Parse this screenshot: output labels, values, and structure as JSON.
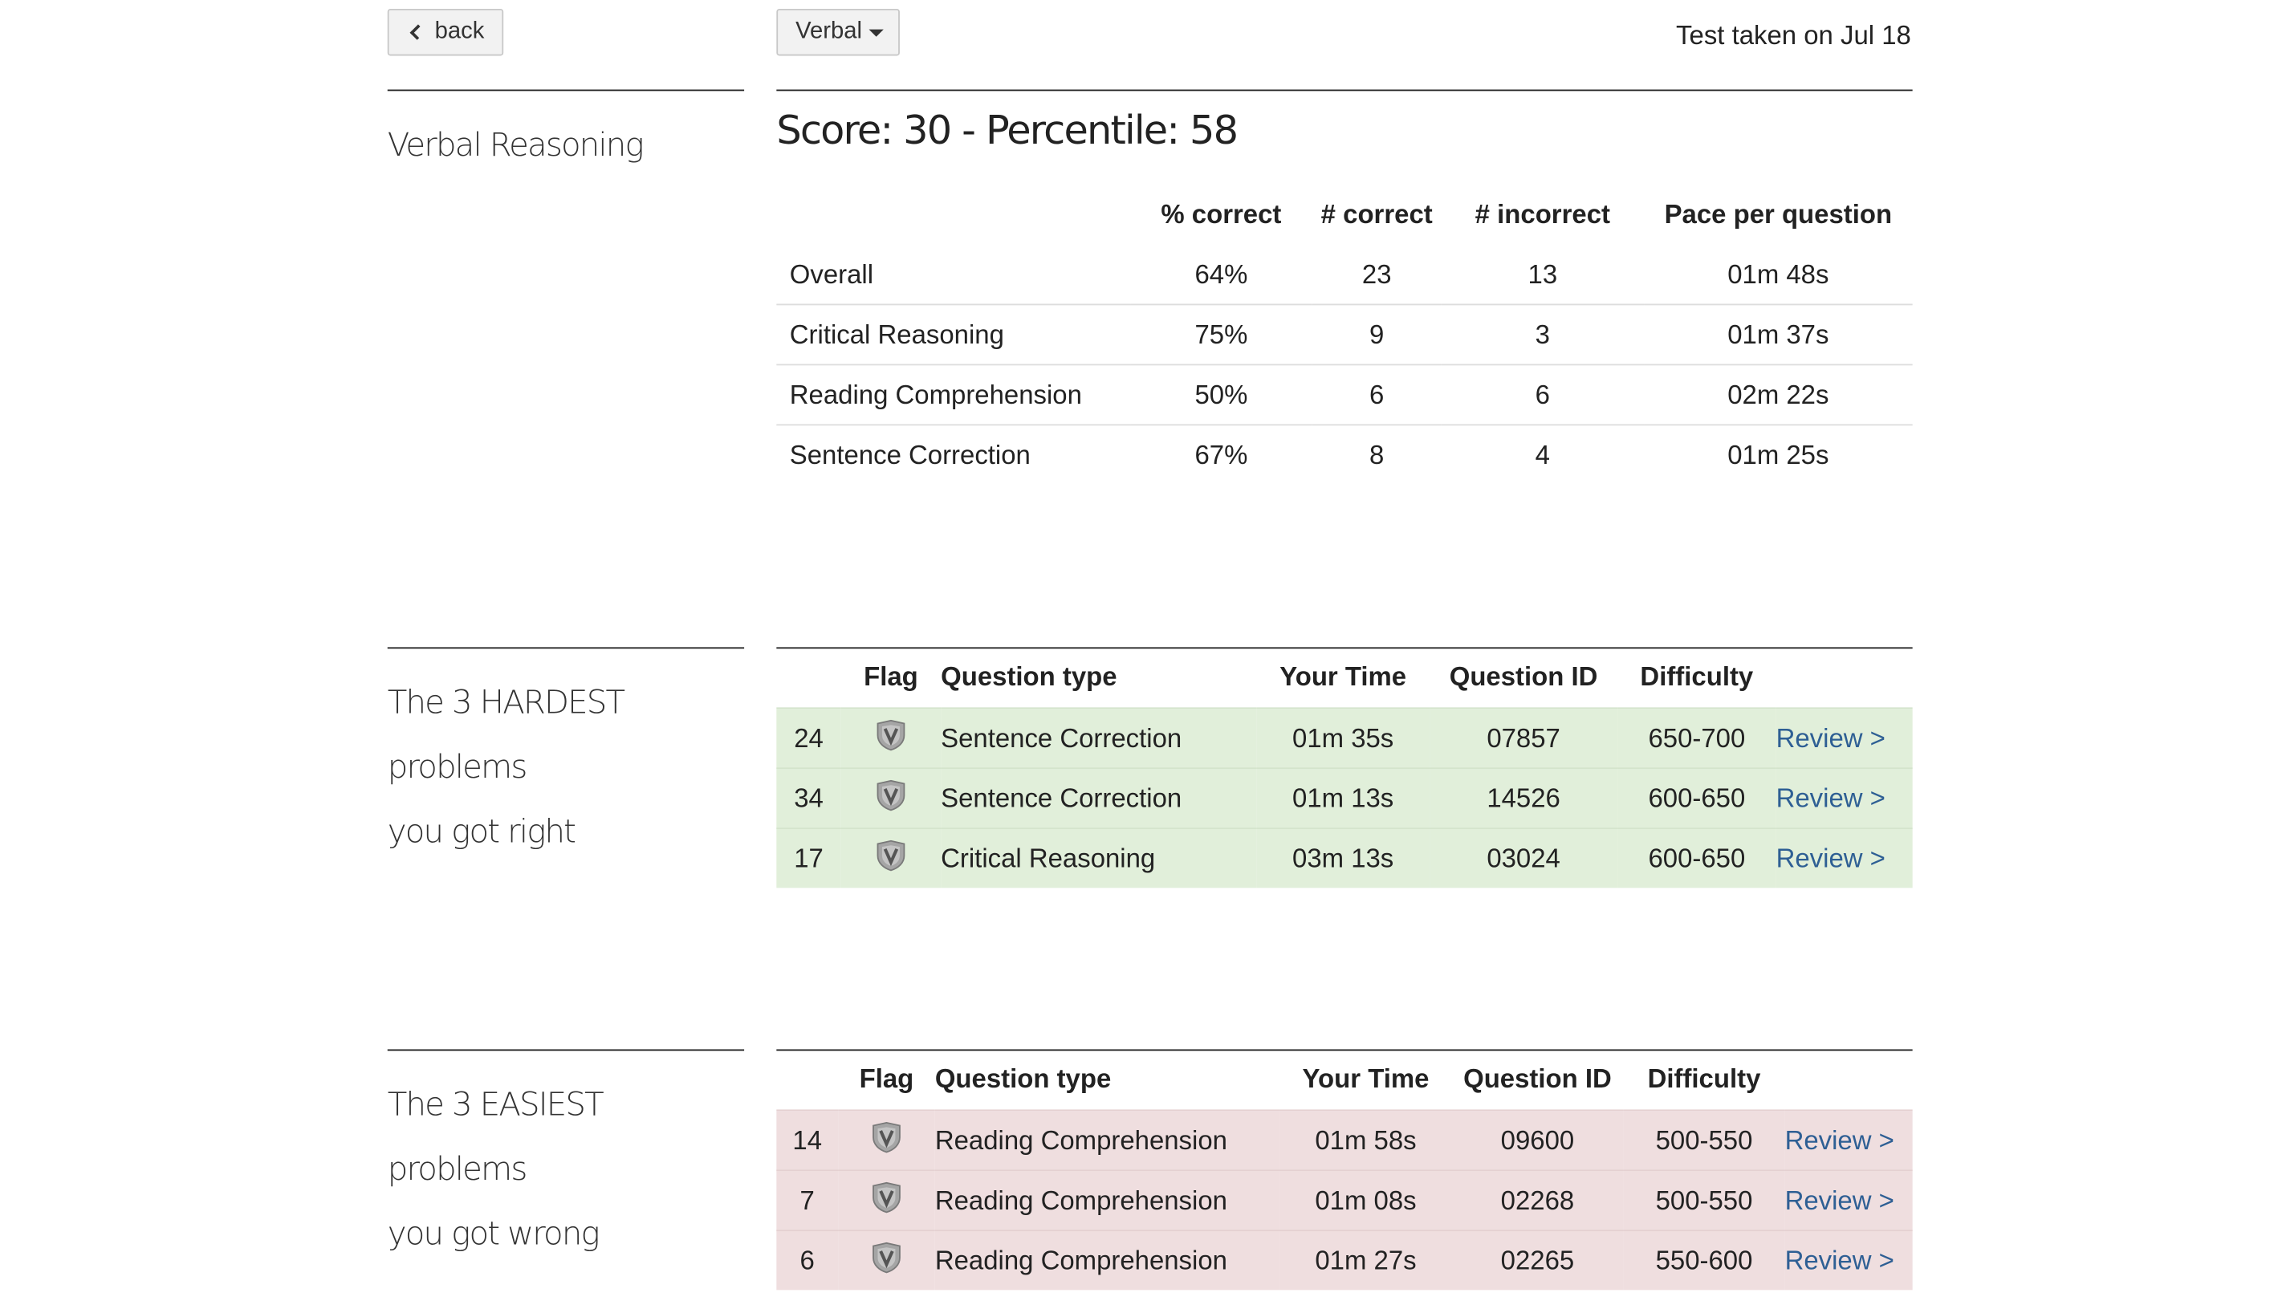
{
  "nav": {
    "back_label": "back",
    "section_select": "Verbal",
    "test_taken": "Test taken on Jul 18"
  },
  "summary": {
    "heading": "Verbal Reasoning",
    "score_line": "Score: 30 - Percentile: 58",
    "columns": [
      "",
      "% correct",
      "# correct",
      "# incorrect",
      "Pace per question"
    ],
    "rows": [
      [
        "Overall",
        "64%",
        "23",
        "13",
        "01m 48s"
      ],
      [
        "Critical Reasoning",
        "75%",
        "9",
        "3",
        "01m 37s"
      ],
      [
        "Reading Comprehension",
        "50%",
        "6",
        "6",
        "02m 22s"
      ],
      [
        "Sentence Correction",
        "67%",
        "8",
        "4",
        "01m 25s"
      ]
    ]
  },
  "hardest": {
    "heading_line1": "The 3 HARDEST problems",
    "heading_line2": "you got right",
    "columns": [
      "",
      "Flag",
      "Question type",
      "Your Time",
      "Question ID",
      "Difficulty",
      ""
    ],
    "rows": [
      {
        "num": "24",
        "type": "Sentence Correction",
        "time": "01m 35s",
        "qid": "07857",
        "difficulty": "650-700",
        "review": "Review >"
      },
      {
        "num": "34",
        "type": "Sentence Correction",
        "time": "01m 13s",
        "qid": "14526",
        "difficulty": "600-650",
        "review": "Review >"
      },
      {
        "num": "17",
        "type": "Critical Reasoning",
        "time": "03m 13s",
        "qid": "03024",
        "difficulty": "600-650",
        "review": "Review >"
      }
    ],
    "row_color": "#e1efda"
  },
  "easiest": {
    "heading_line1": "The 3 EASIEST problems",
    "heading_line2": "you got wrong",
    "columns": [
      "",
      "Flag",
      "Question type",
      "Your Time",
      "Question ID",
      "Difficulty",
      ""
    ],
    "rows": [
      {
        "num": "14",
        "type": "Reading Comprehension",
        "time": "01m 58s",
        "qid": "09600",
        "difficulty": "500-550",
        "review": "Review >"
      },
      {
        "num": "7",
        "type": "Reading Comprehension",
        "time": "01m 08s",
        "qid": "02268",
        "difficulty": "500-550",
        "review": "Review >"
      },
      {
        "num": "6",
        "type": "Reading Comprehension",
        "time": "01m 27s",
        "qid": "02265",
        "difficulty": "550-600",
        "review": "Review >"
      }
    ],
    "row_color": "#efdedf"
  },
  "icons": {
    "flag": "shield-v-icon",
    "back": "chevron-left-icon",
    "dropdown": "caret-down-icon"
  }
}
